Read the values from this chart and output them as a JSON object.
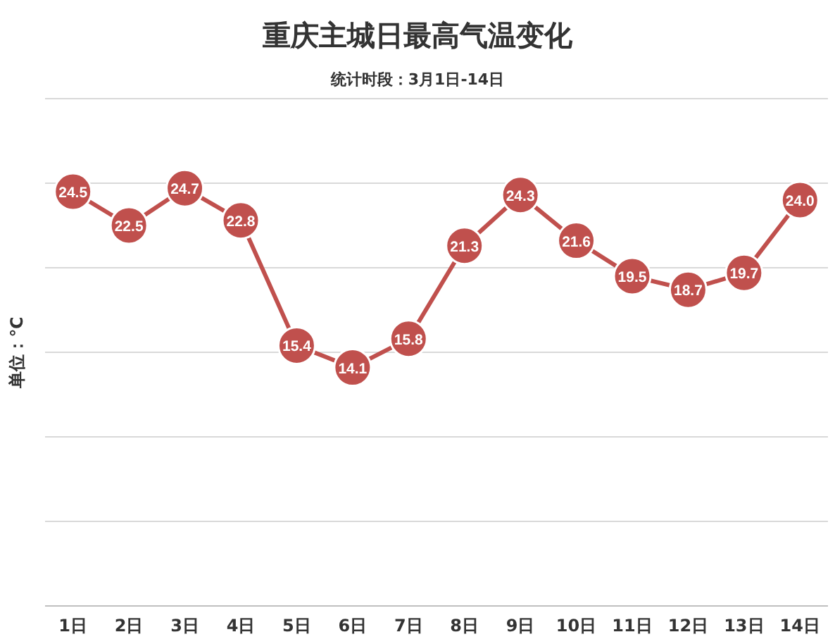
{
  "chart_data": {
    "type": "line",
    "title": "重庆主城日最高气温变化",
    "subtitle": "统计时段：3月1日-14日",
    "ylabel": "单位：℃",
    "categories": [
      "1日",
      "2日",
      "3日",
      "4日",
      "5日",
      "6日",
      "7日",
      "8日",
      "9日",
      "10日",
      "11日",
      "12日",
      "13日",
      "14日"
    ],
    "series": [
      {
        "color": "#c0504d",
        "values": [
          24.5,
          22.5,
          24.7,
          22.8,
          15.4,
          14.1,
          15.8,
          21.3,
          24.3,
          21.6,
          19.5,
          18.7,
          19.7,
          24.0
        ],
        "value_labels": [
          "24.5",
          "22.5",
          "24.7",
          "22.8",
          "15.4",
          "14.1",
          "15.8",
          "21.3",
          "24.3",
          "21.6",
          "19.5",
          "18.7",
          "19.7",
          "24.0"
        ]
      }
    ],
    "ylim": [
      0,
      30
    ],
    "yticks": [
      {
        "value": 0,
        "label": null
      },
      {
        "value": 5,
        "label": null
      },
      {
        "value": 10,
        "label": null
      },
      {
        "value": 15,
        "label": null
      },
      {
        "value": 20,
        "label": null
      },
      {
        "value": 25,
        "label": null
      },
      {
        "value": 30,
        "label": null
      }
    ],
    "tick_labels": "x",
    "grid": "y",
    "marker": "circle",
    "line_style": "solid"
  }
}
